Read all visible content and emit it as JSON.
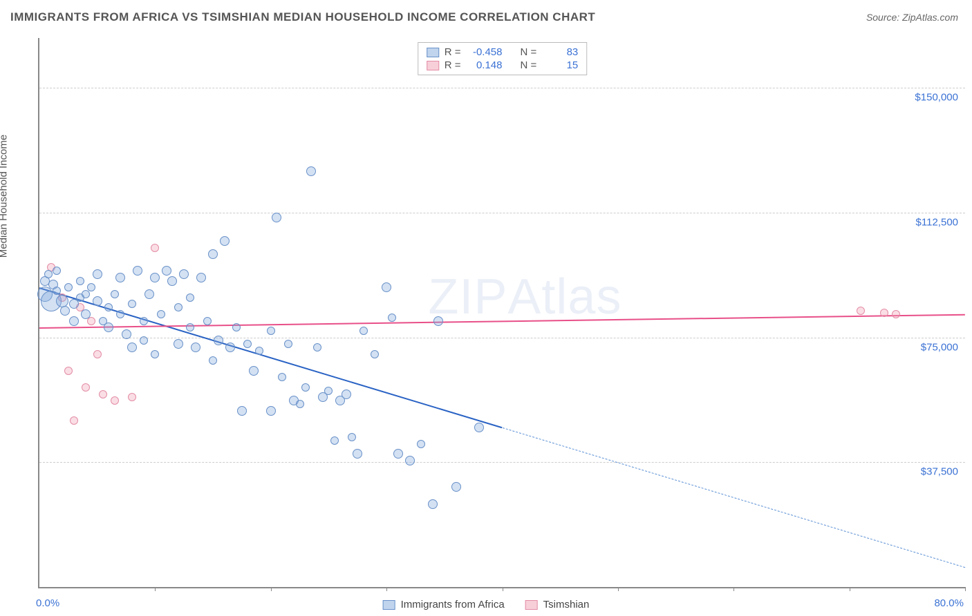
{
  "header": {
    "title": "IMMIGRANTS FROM AFRICA VS TSIMSHIAN MEDIAN HOUSEHOLD INCOME CORRELATION CHART",
    "source": "Source: ZipAtlas.com"
  },
  "chart": {
    "type": "scatter",
    "ylabel": "Median Household Income",
    "xlim": [
      0,
      80
    ],
    "ylim": [
      0,
      165000
    ],
    "x_min_label": "0.0%",
    "x_max_label": "80.0%",
    "xticks": [
      0,
      10,
      20,
      30,
      40,
      50,
      60,
      70,
      80
    ],
    "ygrid": [
      {
        "v": 37500,
        "label": "$37,500"
      },
      {
        "v": 75000,
        "label": "$75,000"
      },
      {
        "v": 112500,
        "label": "$112,500"
      },
      {
        "v": 150000,
        "label": "$150,000"
      }
    ],
    "background_color": "#ffffff",
    "grid_color": "#cccccc",
    "axis_color": "#888888",
    "value_text_color": "#3b72d4",
    "watermark_text": "ZIPAtlas"
  },
  "series": {
    "a": {
      "name": "Immigrants from Africa",
      "color_fill": "rgba(130,170,220,0.35)",
      "color_stroke": "#6890c8",
      "trend_color": "#2962c4",
      "R": "-0.458",
      "N": "83",
      "trend": {
        "x1": 0,
        "y1": 90000,
        "x2": 40,
        "y2": 48000,
        "dash_to_x": 80,
        "dash_to_y": 6000
      },
      "points": [
        {
          "x": 0.5,
          "y": 88000,
          "s": 22
        },
        {
          "x": 0.5,
          "y": 92000,
          "s": 14
        },
        {
          "x": 0.8,
          "y": 94000,
          "s": 12
        },
        {
          "x": 1.0,
          "y": 86000,
          "s": 30
        },
        {
          "x": 1.2,
          "y": 91000,
          "s": 14
        },
        {
          "x": 1.5,
          "y": 95000,
          "s": 12
        },
        {
          "x": 1.5,
          "y": 89000,
          "s": 12
        },
        {
          "x": 2.0,
          "y": 86000,
          "s": 18
        },
        {
          "x": 2.2,
          "y": 83000,
          "s": 14
        },
        {
          "x": 2.5,
          "y": 90000,
          "s": 12
        },
        {
          "x": 3.0,
          "y": 85000,
          "s": 14
        },
        {
          "x": 3.0,
          "y": 80000,
          "s": 14
        },
        {
          "x": 3.5,
          "y": 87000,
          "s": 12
        },
        {
          "x": 3.5,
          "y": 92000,
          "s": 12
        },
        {
          "x": 4.0,
          "y": 82000,
          "s": 14
        },
        {
          "x": 4.0,
          "y": 88000,
          "s": 12
        },
        {
          "x": 4.5,
          "y": 90000,
          "s": 12
        },
        {
          "x": 5.0,
          "y": 86000,
          "s": 14
        },
        {
          "x": 5.0,
          "y": 94000,
          "s": 14
        },
        {
          "x": 5.5,
          "y": 80000,
          "s": 12
        },
        {
          "x": 6.0,
          "y": 84000,
          "s": 12
        },
        {
          "x": 6.0,
          "y": 78000,
          "s": 14
        },
        {
          "x": 6.5,
          "y": 88000,
          "s": 12
        },
        {
          "x": 7.0,
          "y": 93000,
          "s": 14
        },
        {
          "x": 7.0,
          "y": 82000,
          "s": 12
        },
        {
          "x": 7.5,
          "y": 76000,
          "s": 14
        },
        {
          "x": 8.0,
          "y": 85000,
          "s": 12
        },
        {
          "x": 8.0,
          "y": 72000,
          "s": 14
        },
        {
          "x": 8.5,
          "y": 95000,
          "s": 14
        },
        {
          "x": 9.0,
          "y": 80000,
          "s": 12
        },
        {
          "x": 9.0,
          "y": 74000,
          "s": 12
        },
        {
          "x": 9.5,
          "y": 88000,
          "s": 14
        },
        {
          "x": 10.0,
          "y": 93000,
          "s": 14
        },
        {
          "x": 10.0,
          "y": 70000,
          "s": 12
        },
        {
          "x": 10.5,
          "y": 82000,
          "s": 12
        },
        {
          "x": 11.0,
          "y": 95000,
          "s": 14
        },
        {
          "x": 11.5,
          "y": 92000,
          "s": 14
        },
        {
          "x": 12.0,
          "y": 73000,
          "s": 14
        },
        {
          "x": 12.0,
          "y": 84000,
          "s": 12
        },
        {
          "x": 12.5,
          "y": 94000,
          "s": 14
        },
        {
          "x": 13.0,
          "y": 78000,
          "s": 12
        },
        {
          "x": 13.0,
          "y": 87000,
          "s": 12
        },
        {
          "x": 13.5,
          "y": 72000,
          "s": 14
        },
        {
          "x": 14.0,
          "y": 93000,
          "s": 14
        },
        {
          "x": 14.5,
          "y": 80000,
          "s": 12
        },
        {
          "x": 15.0,
          "y": 100000,
          "s": 14
        },
        {
          "x": 15.0,
          "y": 68000,
          "s": 12
        },
        {
          "x": 15.5,
          "y": 74000,
          "s": 14
        },
        {
          "x": 16.0,
          "y": 104000,
          "s": 14
        },
        {
          "x": 16.5,
          "y": 72000,
          "s": 14
        },
        {
          "x": 17.0,
          "y": 78000,
          "s": 12
        },
        {
          "x": 17.5,
          "y": 53000,
          "s": 14
        },
        {
          "x": 18.0,
          "y": 73000,
          "s": 12
        },
        {
          "x": 18.5,
          "y": 65000,
          "s": 14
        },
        {
          "x": 19.0,
          "y": 71000,
          "s": 12
        },
        {
          "x": 20.0,
          "y": 77000,
          "s": 12
        },
        {
          "x": 20.0,
          "y": 53000,
          "s": 14
        },
        {
          "x": 20.5,
          "y": 111000,
          "s": 14
        },
        {
          "x": 21.0,
          "y": 63000,
          "s": 12
        },
        {
          "x": 21.5,
          "y": 73000,
          "s": 12
        },
        {
          "x": 22.0,
          "y": 56000,
          "s": 14
        },
        {
          "x": 22.5,
          "y": 55000,
          "s": 12
        },
        {
          "x": 23.0,
          "y": 60000,
          "s": 12
        },
        {
          "x": 23.5,
          "y": 125000,
          "s": 14
        },
        {
          "x": 24.0,
          "y": 72000,
          "s": 12
        },
        {
          "x": 24.5,
          "y": 57000,
          "s": 14
        },
        {
          "x": 25.0,
          "y": 59000,
          "s": 12
        },
        {
          "x": 25.5,
          "y": 44000,
          "s": 12
        },
        {
          "x": 26.0,
          "y": 56000,
          "s": 14
        },
        {
          "x": 26.5,
          "y": 58000,
          "s": 14
        },
        {
          "x": 27.0,
          "y": 45000,
          "s": 12
        },
        {
          "x": 27.5,
          "y": 40000,
          "s": 14
        },
        {
          "x": 28.0,
          "y": 77000,
          "s": 12
        },
        {
          "x": 29.0,
          "y": 70000,
          "s": 12
        },
        {
          "x": 30.0,
          "y": 90000,
          "s": 14
        },
        {
          "x": 30.5,
          "y": 81000,
          "s": 12
        },
        {
          "x": 31.0,
          "y": 40000,
          "s": 14
        },
        {
          "x": 32.0,
          "y": 38000,
          "s": 14
        },
        {
          "x": 33.0,
          "y": 43000,
          "s": 12
        },
        {
          "x": 34.0,
          "y": 25000,
          "s": 14
        },
        {
          "x": 34.5,
          "y": 80000,
          "s": 14
        },
        {
          "x": 36.0,
          "y": 30000,
          "s": 14
        },
        {
          "x": 38.0,
          "y": 48000,
          "s": 14
        }
      ]
    },
    "b": {
      "name": "Tsimshian",
      "color_fill": "rgba(240,160,180,0.35)",
      "color_stroke": "#e38ca5",
      "trend_color": "#e84f88",
      "R": "0.148",
      "N": "15",
      "trend": {
        "x1": 0,
        "y1": 78000,
        "x2": 80,
        "y2": 82000
      },
      "points": [
        {
          "x": 1.0,
          "y": 96000,
          "s": 12
        },
        {
          "x": 2.0,
          "y": 87000,
          "s": 12
        },
        {
          "x": 2.5,
          "y": 65000,
          "s": 12
        },
        {
          "x": 3.0,
          "y": 50000,
          "s": 12
        },
        {
          "x": 3.5,
          "y": 84000,
          "s": 12
        },
        {
          "x": 4.0,
          "y": 60000,
          "s": 12
        },
        {
          "x": 4.5,
          "y": 80000,
          "s": 12
        },
        {
          "x": 5.0,
          "y": 70000,
          "s": 12
        },
        {
          "x": 5.5,
          "y": 58000,
          "s": 12
        },
        {
          "x": 6.5,
          "y": 56000,
          "s": 12
        },
        {
          "x": 8.0,
          "y": 57000,
          "s": 12
        },
        {
          "x": 10.0,
          "y": 102000,
          "s": 12
        },
        {
          "x": 71.0,
          "y": 83000,
          "s": 12
        },
        {
          "x": 73.0,
          "y": 82500,
          "s": 12
        },
        {
          "x": 74.0,
          "y": 82000,
          "s": 12
        }
      ]
    }
  },
  "legend": {
    "series_a": "Immigrants from Africa",
    "series_b": "Tsimshian",
    "stat_R_label": "R =",
    "stat_N_label": "N ="
  }
}
